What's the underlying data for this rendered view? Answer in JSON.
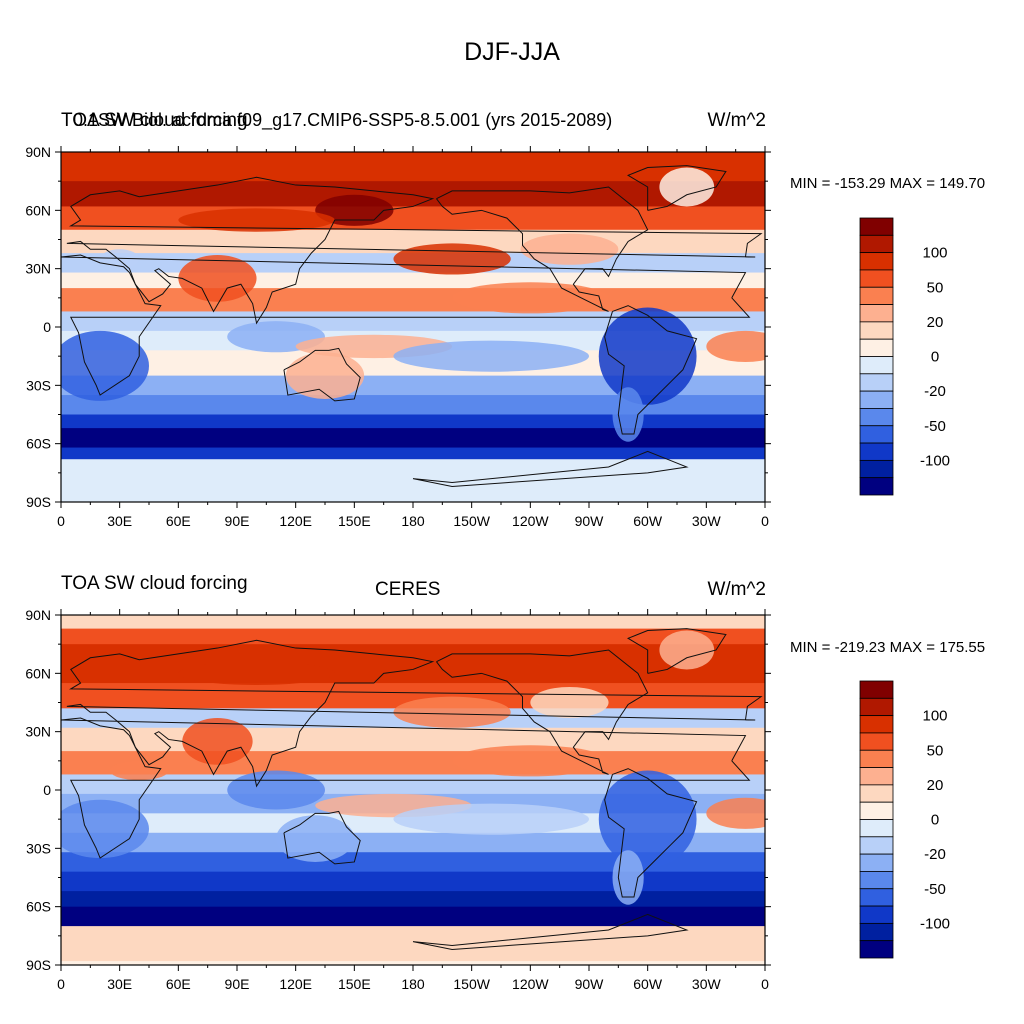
{
  "figure": {
    "main_title": "DJF-JJA"
  },
  "axes": {
    "lat_ticks": [
      "90N",
      "60N",
      "30N",
      "0",
      "30S",
      "60S",
      "90S"
    ],
    "lon_ticks": [
      "0",
      "30E",
      "60E",
      "90E",
      "120E",
      "150E",
      "180",
      "150W",
      "120W",
      "90W",
      "60W",
      "30W",
      "0"
    ]
  },
  "colorbar": {
    "labels": [
      "100",
      "50",
      "20",
      "0",
      "-20",
      "-50",
      "-100"
    ],
    "colors": [
      "#800000",
      "#b01800",
      "#d83000",
      "#f05020",
      "#fa8050",
      "#fdb090",
      "#fdd8c0",
      "#fef0e4",
      "#deecfa",
      "#b8d0f8",
      "#8cb0f4",
      "#5a88ec",
      "#3060e0",
      "#1038c8",
      "#0020a0",
      "#000080"
    ]
  },
  "panels": [
    {
      "left_title_a": "TOA SW cloud forcing",
      "left_title_b": "0.1SW Biol. acrdma f09_g17.CMIP6-SSP5-8.5.001 (yrs 2015-2089)",
      "center_title": "",
      "right_title": "W/m^2",
      "minmax": "MIN = -153.29 MAX = 149.70"
    },
    {
      "left_title_a": "TOA SW cloud forcing",
      "left_title_b": "",
      "center_title": "CERES",
      "right_title": "W/m^2",
      "minmax": "MIN = -219.23 MAX = 175.55"
    }
  ]
}
